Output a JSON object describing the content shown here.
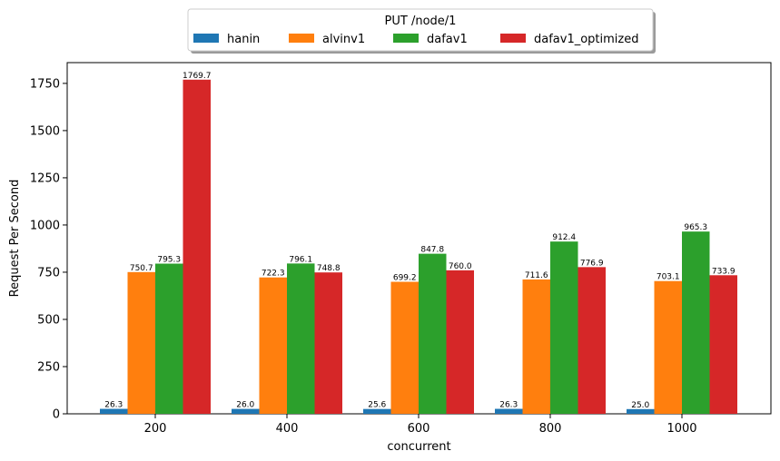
{
  "chart_data": {
    "type": "bar",
    "title": "",
    "xlabel": "concurrent",
    "ylabel": "Request Per Second",
    "categories": [
      "200",
      "400",
      "600",
      "800",
      "1000"
    ],
    "series": [
      {
        "name": "hanin",
        "color": "#1f77b4",
        "values": [
          26.3,
          26.0,
          25.6,
          26.3,
          25.0
        ]
      },
      {
        "name": "alvinv1",
        "color": "#ff7f0e",
        "values": [
          750.7,
          722.3,
          699.2,
          711.6,
          703.1
        ]
      },
      {
        "name": "dafav1",
        "color": "#2ca02c",
        "values": [
          795.3,
          796.1,
          847.8,
          912.4,
          965.3
        ]
      },
      {
        "name": "dafav1_optimized",
        "color": "#d62728",
        "values": [
          1769.7,
          748.8,
          760.0,
          776.9,
          733.9
        ]
      }
    ],
    "ylim": [
      0,
      1860
    ],
    "yticks": [
      0,
      250,
      500,
      750,
      1000,
      1250,
      1500,
      1750
    ],
    "legend": {
      "title": "PUT /node/1",
      "placement": "top-center"
    },
    "grid": false
  }
}
